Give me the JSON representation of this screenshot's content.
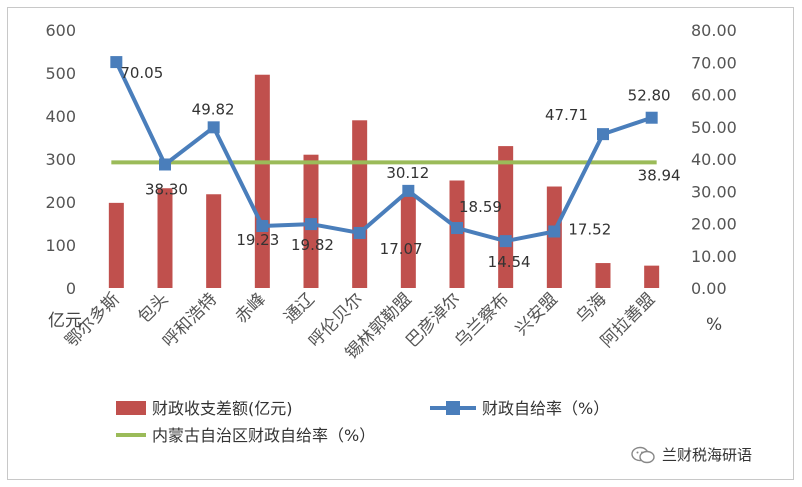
{
  "chart_data": {
    "type": "bar+line",
    "categories": [
      "鄂尔多斯",
      "包头",
      "呼和浩特",
      "赤峰",
      "通辽",
      "呼伦贝尔",
      "锡林郭勒盟",
      "巴彦淖尔",
      "乌兰察布",
      "兴安盟",
      "乌海",
      "阿拉善盟"
    ],
    "series": [
      {
        "name": "财政收支差额(亿元)",
        "type": "bar",
        "axis": "left",
        "color": "#c0504d",
        "values": [
          198,
          232,
          218,
          496,
          310,
          390,
          215,
          250,
          330,
          236,
          58,
          52
        ]
      },
      {
        "name": "财政自给率（%）",
        "type": "line",
        "axis": "right",
        "color": "#4a7ebb",
        "values": [
          70.05,
          38.3,
          49.82,
          19.23,
          19.82,
          17.07,
          30.12,
          18.59,
          14.54,
          17.52,
          47.71,
          52.8
        ]
      },
      {
        "name": "内蒙古自治区财政自给率（%）",
        "type": "line",
        "axis": "right",
        "color": "#9bbb59",
        "values": [
          38.94,
          38.94,
          38.94,
          38.94,
          38.94,
          38.94,
          38.94,
          38.94,
          38.94,
          38.94,
          38.94,
          38.94
        ]
      }
    ],
    "data_labels": [
      "70.05",
      "38.30",
      "49.82",
      "19.23",
      "19.82",
      "17.07",
      "30.12",
      "18.59",
      "14.54",
      "17.52",
      "47.71",
      "52.80"
    ],
    "reference_label": "38.94",
    "ylabel_left": "亿元",
    "ylabel_right": "%",
    "ylim_left": [
      0,
      600
    ],
    "ylim_right": [
      0,
      80
    ],
    "yticks_left": [
      "0",
      "100",
      "200",
      "300",
      "400",
      "500",
      "600"
    ],
    "yticks_right": [
      "0.00",
      "10.00",
      "20.00",
      "30.00",
      "40.00",
      "50.00",
      "60.00",
      "70.00",
      "80.00"
    ],
    "legend_position": "bottom",
    "grid": false
  },
  "watermark": {
    "text": "兰财税海研语",
    "icon": "wechat-icon"
  }
}
